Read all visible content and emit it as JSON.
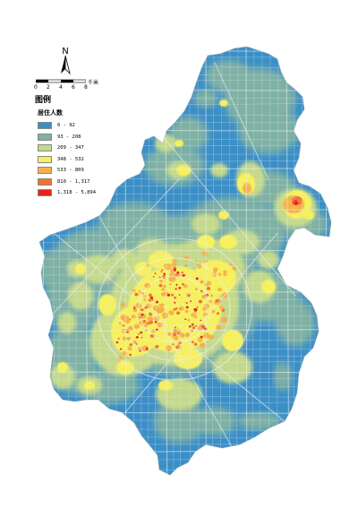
{
  "north_arrow": {
    "letter": "N"
  },
  "scale_bar": {
    "ticks": [
      "0",
      "2",
      "4",
      "6",
      "8"
    ],
    "unit": "千米"
  },
  "legend": {
    "title": "图例",
    "field": "居住人数",
    "classes": [
      {
        "label": "0 - 92",
        "color": "#3b8fc7"
      },
      {
        "label": "93 - 208",
        "color": "#7fb1a4"
      },
      {
        "label": "209 - 347",
        "color": "#c4d98a"
      },
      {
        "label": "348 - 532",
        "color": "#f6f05c"
      },
      {
        "label": "533 - 809",
        "color": "#f6b04a"
      },
      {
        "label": "810 - 1,317",
        "color": "#ef7434"
      },
      {
        "label": "1,318 - 5,894",
        "color": "#e6221b"
      }
    ]
  }
}
